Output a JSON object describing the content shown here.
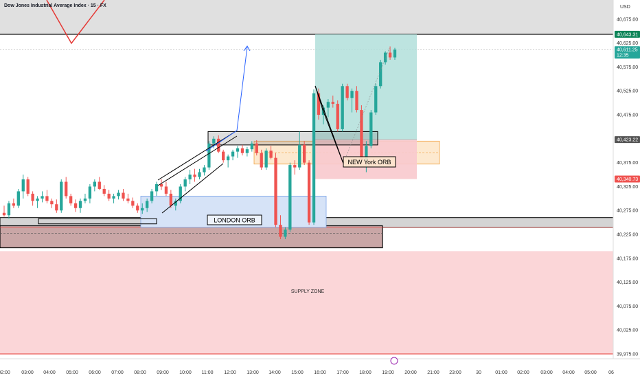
{
  "header": {
    "title": "Dow Jones Industrial Average Index · 15 · FX",
    "currency": "USD"
  },
  "colors": {
    "up": "#26a69a",
    "down": "#ef5350",
    "supply": "#fbd6d8",
    "supply_line": "#e53935",
    "long_tp": "#b2dfdb",
    "long_sl": "#f8c9cd",
    "orb_blue": "#d6e3f7",
    "orb_orange": "#fde9cf",
    "box_gray": "#c9a6a6",
    "arrow_blue": "#2962ff"
  },
  "price_badges": [
    {
      "price": 40643.31,
      "label": "40,643.31",
      "color": "#0b8457"
    },
    {
      "price": 40611.25,
      "label": "40,611.25",
      "sub": "12:35",
      "color": "#26a69a"
    },
    {
      "price": 40423.22,
      "label": "40,423.22",
      "color": "#555555"
    },
    {
      "price": 40340.73,
      "label": "40,340.73",
      "color": "#ef5350"
    }
  ],
  "annotations": {
    "supply_zone": "SUPPLY ZONE",
    "london_orb": "LONDON ORB",
    "newyork_orb": "NEW York ORB"
  },
  "chart_data": {
    "type": "candlestick",
    "title": "Dow Jones Industrial Average Index · 15 · FX",
    "ylim": [
      39965,
      40715
    ],
    "y_ticks": [
      "40,675.00",
      "40,625.00",
      "40,575.00",
      "40,525.00",
      "40,475.00",
      "40,425.00",
      "40,375.00",
      "40,325.00",
      "40,275.00",
      "40,225.00",
      "40,175.00",
      "40,125.00",
      "40,075.00",
      "40,025.00",
      "39,975.00"
    ],
    "x_ticks": [
      "02:00",
      "03:00",
      "04:00",
      "05:00",
      "06:00",
      "07:00",
      "08:00",
      "09:00",
      "10:00",
      "11:00",
      "12:00",
      "13:00",
      "14:00",
      "15:00",
      "16:00",
      "17:00",
      "18:00",
      "19:00",
      "20:00",
      "21:00",
      "23:00",
      "30",
      "01:00",
      "02:00",
      "03:00",
      "04:00",
      "05:00",
      "06"
    ],
    "candles": [
      [
        40270,
        40285,
        40262,
        40265
      ],
      [
        40265,
        40295,
        40258,
        40290
      ],
      [
        40290,
        40300,
        40280,
        40285
      ],
      [
        40285,
        40320,
        40280,
        40315
      ],
      [
        40315,
        40350,
        40300,
        40340
      ],
      [
        40340,
        40345,
        40305,
        40310
      ],
      [
        40310,
        40315,
        40285,
        40295
      ],
      [
        40295,
        40305,
        40280,
        40300
      ],
      [
        40300,
        40315,
        40292,
        40305
      ],
      [
        40305,
        40318,
        40290,
        40295
      ],
      [
        40295,
        40300,
        40280,
        40288
      ],
      [
        40288,
        40298,
        40270,
        40275
      ],
      [
        40275,
        40340,
        40270,
        40335
      ],
      [
        40335,
        40345,
        40300,
        40305
      ],
      [
        40305,
        40310,
        40285,
        40290
      ],
      [
        40290,
        40298,
        40272,
        40280
      ],
      [
        40280,
        40300,
        40270,
        40295
      ],
      [
        40295,
        40310,
        40290,
        40300
      ],
      [
        40300,
        40330,
        40290,
        40325
      ],
      [
        40325,
        40340,
        40315,
        40335
      ],
      [
        40335,
        40345,
        40318,
        40320
      ],
      [
        40320,
        40328,
        40305,
        40310
      ],
      [
        40310,
        40318,
        40295,
        40300
      ],
      [
        40300,
        40310,
        40290,
        40305
      ],
      [
        40305,
        40318,
        40298,
        40312
      ],
      [
        40312,
        40320,
        40295,
        40300
      ],
      [
        40300,
        40310,
        40290,
        40295
      ],
      [
        40295,
        40302,
        40280,
        40285
      ],
      [
        40285,
        40290,
        40270,
        40275
      ],
      [
        40275,
        40290,
        40268,
        40280
      ],
      [
        40280,
        40300,
        40272,
        40295
      ],
      [
        40295,
        40320,
        40290,
        40315
      ],
      [
        40315,
        40335,
        40305,
        40330
      ],
      [
        40330,
        40340,
        40318,
        40325
      ],
      [
        40325,
        40335,
        40305,
        40310
      ],
      [
        40310,
        40318,
        40280,
        40285
      ],
      [
        40285,
        40300,
        40275,
        40295
      ],
      [
        40295,
        40330,
        40290,
        40325
      ],
      [
        40325,
        40345,
        40315,
        40340
      ],
      [
        40340,
        40360,
        40330,
        40350
      ],
      [
        40350,
        40362,
        40335,
        40345
      ],
      [
        40345,
        40362,
        40340,
        40355
      ],
      [
        40355,
        40370,
        40348,
        40365
      ],
      [
        40365,
        40420,
        40360,
        40415
      ],
      [
        40415,
        40430,
        40405,
        40425
      ],
      [
        40425,
        40432,
        40395,
        40398
      ],
      [
        40398,
        40402,
        40375,
        40380
      ],
      [
        40380,
        40392,
        40365,
        40388
      ],
      [
        40388,
        40402,
        40380,
        40398
      ],
      [
        40398,
        40410,
        40385,
        40405
      ],
      [
        40405,
        40412,
        40390,
        40395
      ],
      [
        40395,
        40408,
        40388,
        40403
      ],
      [
        40403,
        40420,
        40398,
        40415
      ],
      [
        40415,
        40422,
        40390,
        40395
      ],
      [
        40395,
        40402,
        40360,
        40365
      ],
      [
        40365,
        40405,
        40360,
        40400
      ],
      [
        40400,
        40410,
        40382,
        40385
      ],
      [
        40385,
        40395,
        40240,
        40245
      ],
      [
        40245,
        40265,
        40215,
        40220
      ],
      [
        40220,
        40240,
        40215,
        40235
      ],
      [
        40235,
        40375,
        40230,
        40370
      ],
      [
        40370,
        40380,
        40350,
        40365
      ],
      [
        40365,
        40440,
        40360,
        40412
      ],
      [
        40412,
        40420,
        40370,
        40375
      ],
      [
        40375,
        40380,
        40245,
        40250
      ],
      [
        40250,
        40528,
        40245,
        40520
      ],
      [
        40520,
        40530,
        40465,
        40475
      ],
      [
        40475,
        40495,
        40455,
        40490
      ],
      [
        40490,
        40508,
        40470,
        40502
      ],
      [
        40502,
        40515,
        40490,
        40498
      ],
      [
        40498,
        40505,
        40440,
        40445
      ],
      [
        40445,
        40540,
        40440,
        40535
      ],
      [
        40535,
        40540,
        40505,
        40510
      ],
      [
        40510,
        40530,
        40480,
        40525
      ],
      [
        40525,
        40535,
        40480,
        40485
      ],
      [
        40485,
        40495,
        40375,
        40380
      ],
      [
        40380,
        40420,
        40355,
        40410
      ],
      [
        40410,
        40485,
        40405,
        40480
      ],
      [
        40480,
        40540,
        40475,
        40535
      ],
      [
        40535,
        40590,
        40530,
        40585
      ],
      [
        40585,
        40608,
        40580,
        40605
      ],
      [
        40605,
        40618,
        40590,
        40595
      ],
      [
        40595,
        40615,
        40590,
        40611.25
      ]
    ]
  }
}
